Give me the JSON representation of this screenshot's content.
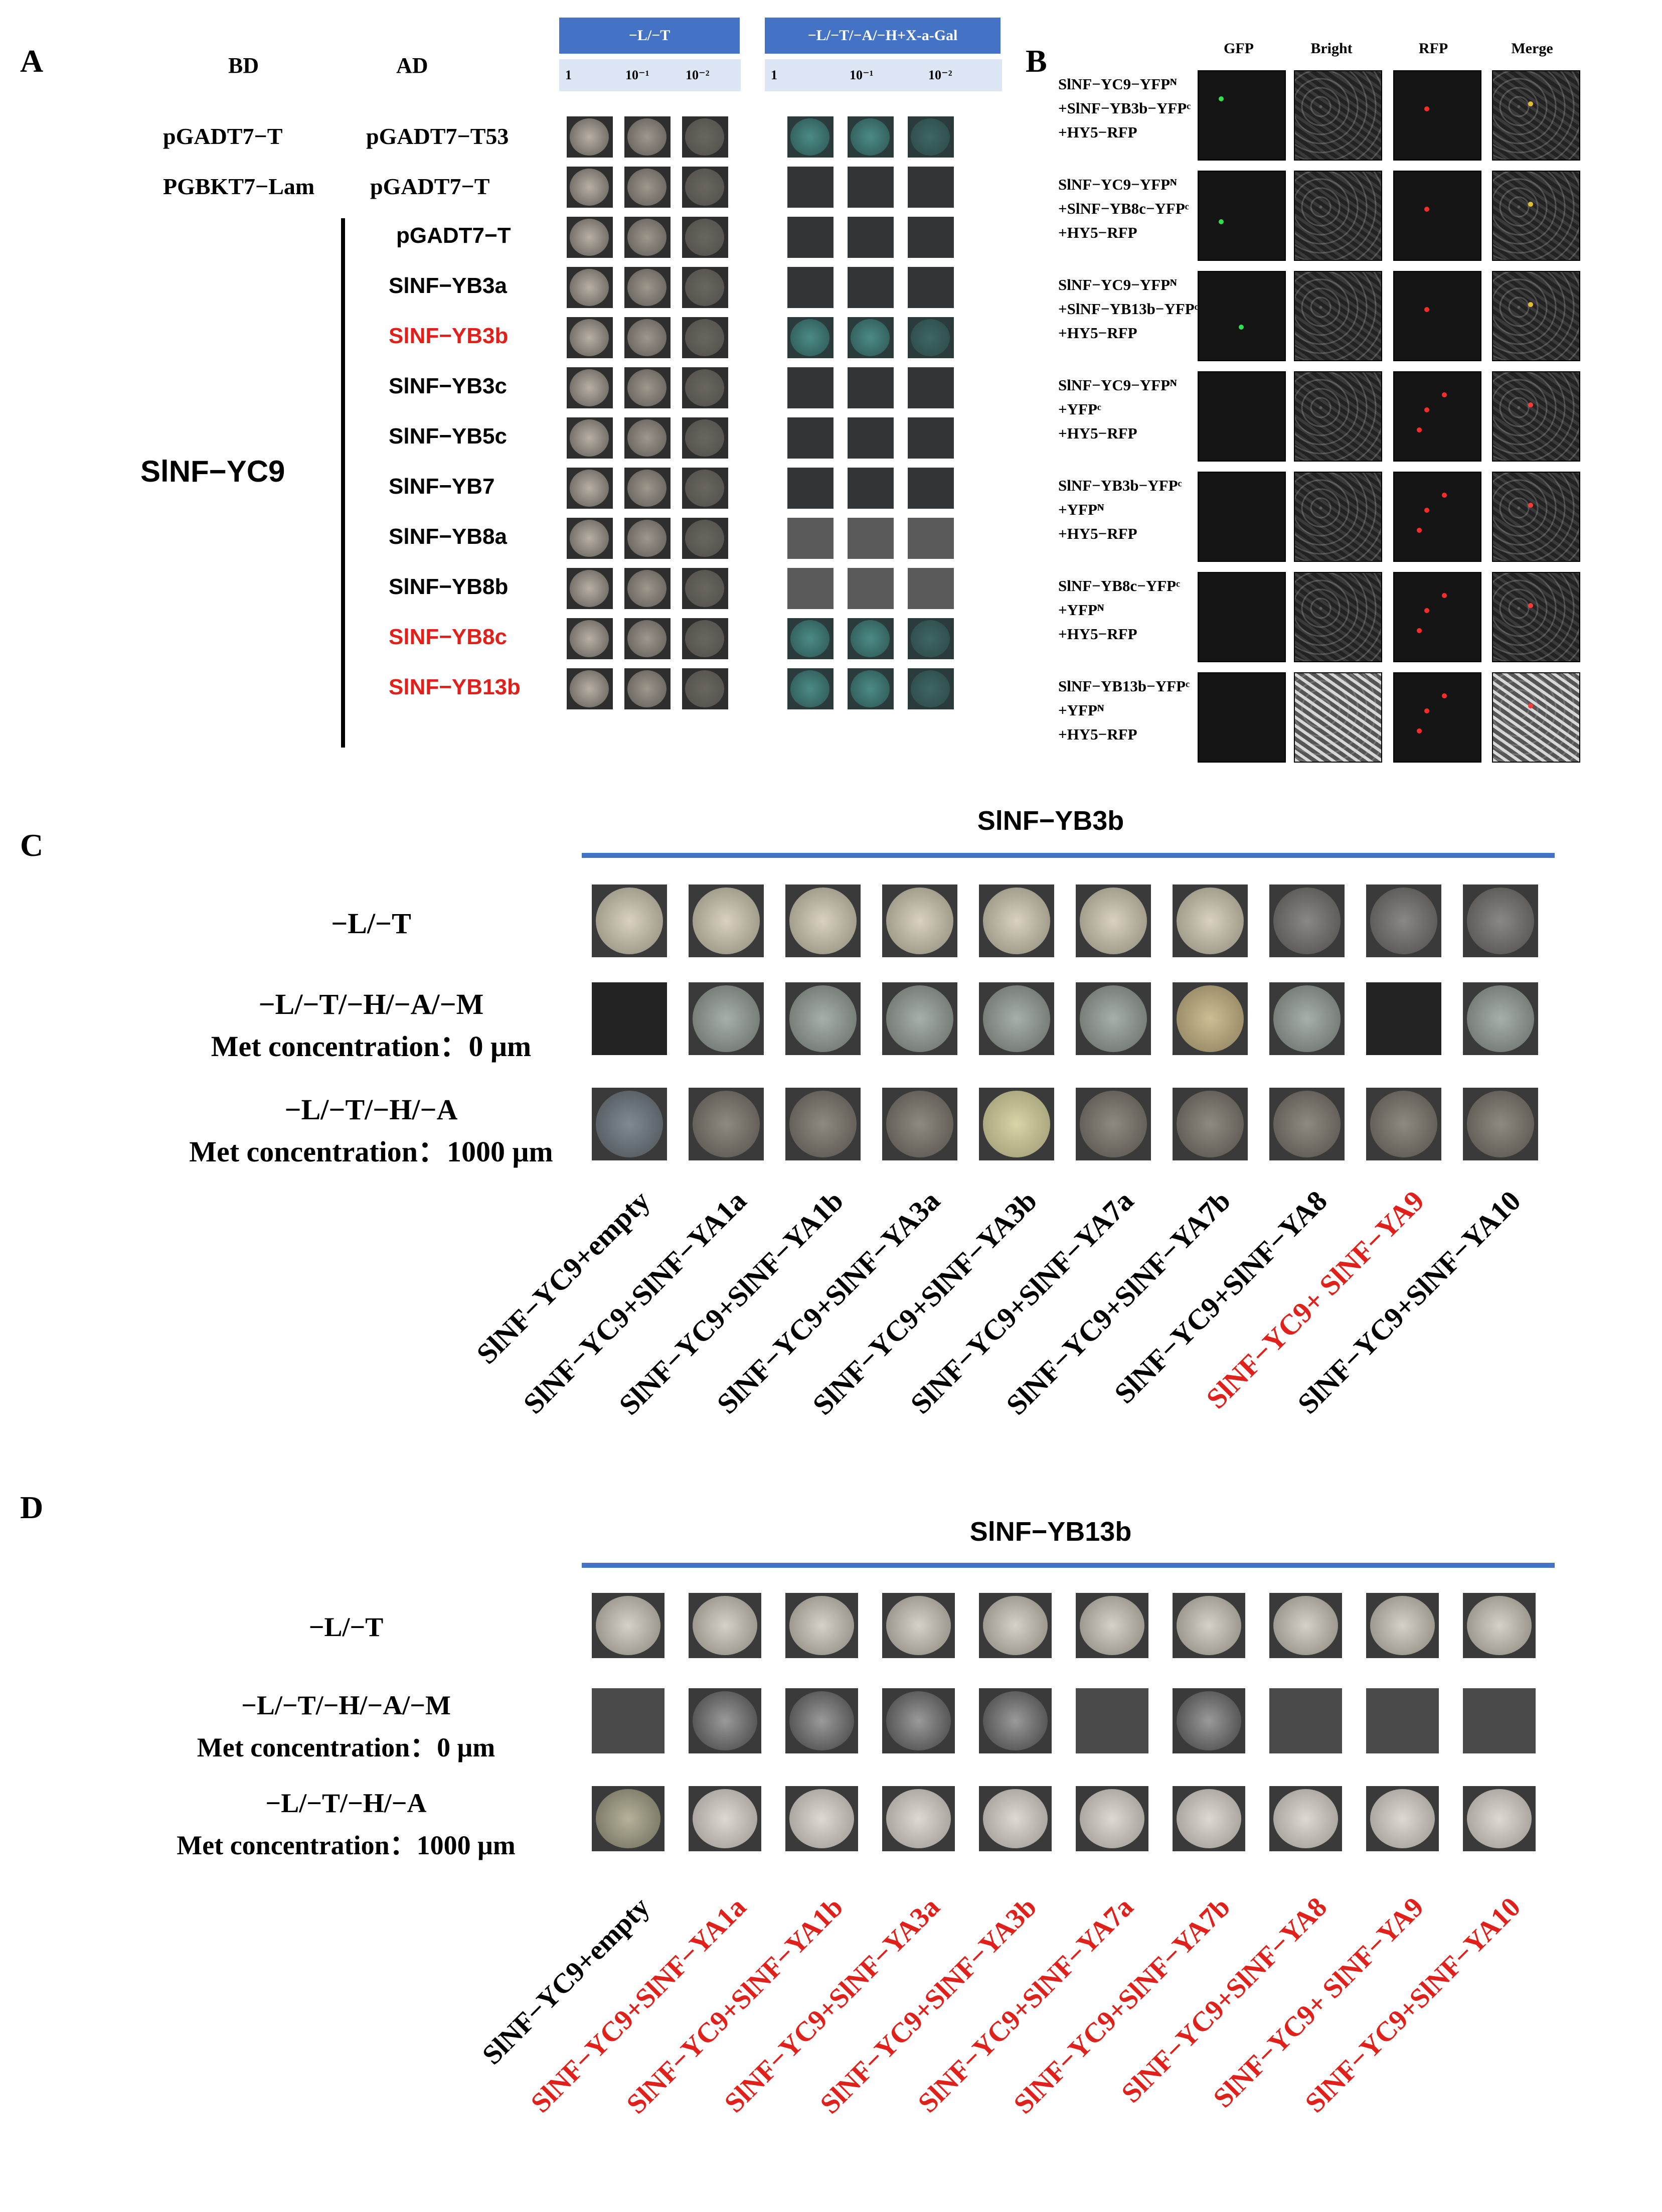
{
  "panelA": {
    "letter": "A",
    "bd_header": "BD",
    "ad_header": "AD",
    "medium1_header": "−L/−T",
    "medium2_header": "−L/−T/−A/−H+X-a-Gal",
    "dilutions": [
      "1",
      "10⁻¹",
      "10⁻²"
    ],
    "control_rows": [
      {
        "bd": "pGADT7−T",
        "ad": "pGADT7−T53"
      },
      {
        "bd": "PGBKT7−Lam",
        "ad": "pGADT7−T"
      }
    ],
    "bait_label": "SlNF−YC9",
    "prey_rows": [
      {
        "ad": "pGADT7−T",
        "highlight": false
      },
      {
        "ad": "SlNF−YB3a",
        "highlight": false
      },
      {
        "ad": "SlNF−YB3b",
        "highlight": true
      },
      {
        "ad": "SlNF−YB3c",
        "highlight": false
      },
      {
        "ad": "SlNF−YB5c",
        "highlight": false
      },
      {
        "ad": "SlNF−YB7",
        "highlight": false
      },
      {
        "ad": "SlNF−YB8a",
        "highlight": false
      },
      {
        "ad": "SlNF−YB8b",
        "highlight": false
      },
      {
        "ad": "SlNF−YB8c",
        "highlight": true
      },
      {
        "ad": "SlNF−YB13b",
        "highlight": true
      }
    ]
  },
  "panelB": {
    "letter": "B",
    "columns": [
      "GFP",
      "Bright",
      "RFP",
      "Merge"
    ],
    "rows": [
      {
        "lines": [
          "SlNF−YC9−YFPᴺ",
          "+SlNF−YB3b−YFPᶜ",
          "+HY5−RFP"
        ]
      },
      {
        "lines": [
          "SlNF−YC9−YFPᴺ",
          "+SlNF−YB8c−YFPᶜ",
          "+HY5−RFP"
        ]
      },
      {
        "lines": [
          "SlNF−YC9−YFPᴺ",
          "+SlNF−YB13b−YFPᶜ",
          "+HY5−RFP"
        ]
      },
      {
        "lines": [
          "SlNF−YC9−YFPᴺ",
          "+YFPᶜ",
          "+HY5−RFP"
        ]
      },
      {
        "lines": [
          "SlNF−YB3b−YFPᶜ",
          " +YFPᴺ",
          "+HY5−RFP"
        ]
      },
      {
        "lines": [
          "SlNF−YB8c−YFPᶜ",
          " +YFPᴺ",
          "+HY5−RFP"
        ]
      },
      {
        "lines": [
          "SlNF−YB13b−YFPᶜ",
          "+YFPᴺ",
          "+HY5−RFP"
        ]
      }
    ]
  },
  "panelC": {
    "letter": "C",
    "title": "SlNF−YB3b",
    "rows": [
      {
        "line1": "−L/−T",
        "line2": ""
      },
      {
        "line1": "−L/−T/−H/−A/−M",
        "line2": "Met concentration：0 μm"
      },
      {
        "line1": "−L/−T/−H/−A",
        "line2": "Met concentration：1000 μm"
      }
    ],
    "combos": [
      {
        "label": "SlNF−YC9+empty",
        "highlight": false
      },
      {
        "label": "SlNF−YC9+SlNF−YA1a",
        "highlight": false
      },
      {
        "label": "SlNF−YC9+SlNF−YA1b",
        "highlight": false
      },
      {
        "label": "SlNF−YC9+SlNF−YA3a",
        "highlight": false
      },
      {
        "label": "SlNF−YC9+SlNF−YA3b",
        "highlight": false
      },
      {
        "label": "SlNF−YC9+SlNF−YA7a",
        "highlight": false
      },
      {
        "label": "SlNF−YC9+SlNF−YA7b",
        "highlight": false
      },
      {
        "label": "SlNF−YC9+SlNF−YA8",
        "highlight": false
      },
      {
        "label": "SlNF−YC9+ SlNF−YA9",
        "highlight": true
      },
      {
        "label": "SlNF−YC9+SlNF−YA10",
        "highlight": false
      }
    ]
  },
  "panelD": {
    "letter": "D",
    "title": "SlNF−YB13b",
    "rows": [
      {
        "line1": "−L/−T",
        "line2": ""
      },
      {
        "line1": "−L/−T/−H/−A/−M",
        "line2": "Met concentration：0 μm"
      },
      {
        "line1": "−L/−T/−H/−A",
        "line2": "Met concentration：1000 μm"
      }
    ],
    "combos": [
      {
        "label": "SlNF−YC9+empty",
        "highlight": false
      },
      {
        "label": "SlNF−YC9+SlNF−YA1a",
        "highlight": true
      },
      {
        "label": "SlNF−YC9+SlNF−YA1b",
        "highlight": true
      },
      {
        "label": "SlNF−YC9+SlNF−YA3a",
        "highlight": true
      },
      {
        "label": "SlNF−YC9+SlNF−YA3b",
        "highlight": true
      },
      {
        "label": "SlNF−YC9+SlNF−YA7a",
        "highlight": true
      },
      {
        "label": "SlNF−YC9+SlNF−YA7b",
        "highlight": true
      },
      {
        "label": "SlNF−YC9+SlNF−YA8",
        "highlight": true
      },
      {
        "label": "SlNF−YC9+ SlNF−YA9",
        "highlight": true
      },
      {
        "label": "SlNF−YC9+SlNF−YA10",
        "highlight": true
      }
    ]
  },
  "colors": {
    "header_blue": "#4472c4",
    "highlight_red": "#e0201b"
  }
}
